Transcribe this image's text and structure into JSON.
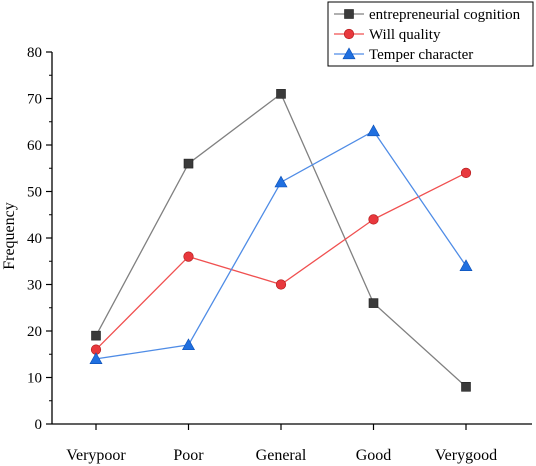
{
  "chart_data": {
    "type": "line",
    "title": "",
    "xlabel": "",
    "ylabel": "Frequency",
    "ylim": [
      0,
      80
    ],
    "yticks": [
      0,
      10,
      20,
      30,
      40,
      50,
      60,
      70,
      80
    ],
    "grid": false,
    "legend_position": "top-right",
    "categories": [
      "Verypoor",
      "Poor",
      "General",
      "Good",
      "Verygood"
    ],
    "series": [
      {
        "name": "entrepreneurial cognition",
        "values": [
          19,
          56,
          71,
          26,
          8
        ],
        "color": "#808080",
        "marker_color": "#3a3a3a",
        "marker": "square"
      },
      {
        "name": "Will quality",
        "values": [
          16,
          36,
          30,
          44,
          54
        ],
        "color": "#f05050",
        "marker_color": "#e8383d",
        "marker": "circle"
      },
      {
        "name": "Temper character",
        "values": [
          14,
          17,
          52,
          63,
          34
        ],
        "color": "#4f8ce6",
        "marker_color": "#1f6fe0",
        "marker": "triangle"
      }
    ]
  }
}
